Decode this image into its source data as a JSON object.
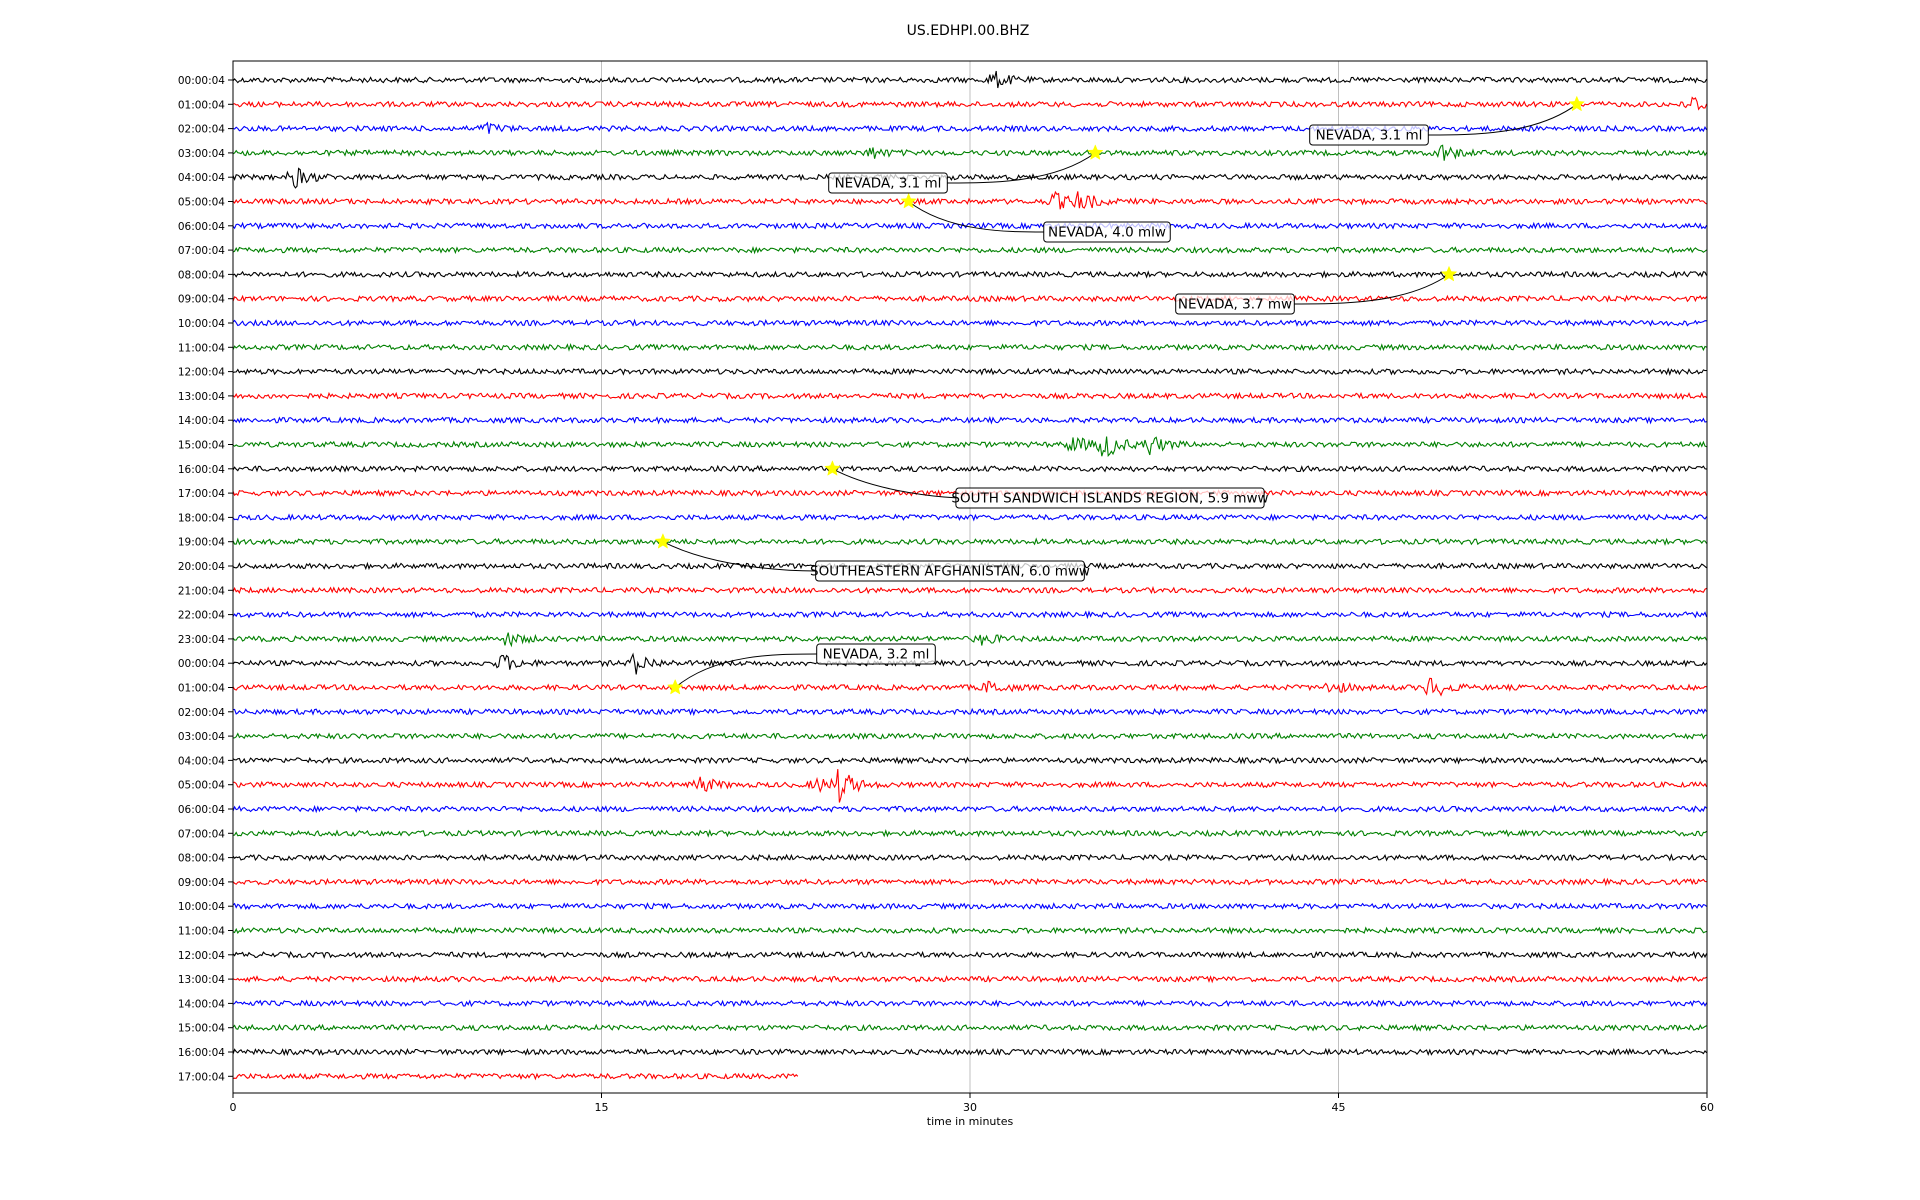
{
  "chart_data": {
    "type": "line",
    "title": "US.EDHPI.00.BHZ",
    "xlabel": "time in minutes",
    "ylabel": "",
    "xlim": [
      0,
      60
    ],
    "x_ticks": [
      "0",
      "15",
      "30",
      "45",
      "60"
    ],
    "x_tick_values": [
      0,
      15,
      30,
      45,
      60
    ],
    "grid": "vertical",
    "series_colors": [
      "#000000",
      "#ff0000",
      "#0000ff",
      "#008000"
    ],
    "marker_color": "#ffff00",
    "rows": [
      {
        "label": "00:00:04",
        "end_minute": 60,
        "bursts": [
          {
            "t": 31,
            "amp": 8
          }
        ]
      },
      {
        "label": "01:00:04",
        "end_minute": 60,
        "bursts": [
          {
            "t": 59.4,
            "amp": 8
          }
        ]
      },
      {
        "label": "02:00:04",
        "end_minute": 60,
        "bursts": [
          {
            "t": 10.3,
            "amp": 5
          }
        ]
      },
      {
        "label": "03:00:04",
        "end_minute": 60,
        "bursts": [
          {
            "t": 26,
            "amp": 5
          },
          {
            "t": 49.2,
            "amp": 8
          }
        ]
      },
      {
        "label": "04:00:04",
        "end_minute": 60,
        "bursts": [
          {
            "t": 2.5,
            "amp": 10
          }
        ]
      },
      {
        "label": "05:00:04",
        "end_minute": 60,
        "bursts": [
          {
            "t": 33.5,
            "amp": 8
          },
          {
            "t": 34.5,
            "amp": 9
          }
        ]
      },
      {
        "label": "06:00:04",
        "end_minute": 60,
        "bursts": []
      },
      {
        "label": "07:00:04",
        "end_minute": 60,
        "bursts": []
      },
      {
        "label": "08:00:04",
        "end_minute": 60,
        "bursts": []
      },
      {
        "label": "09:00:04",
        "end_minute": 60,
        "bursts": []
      },
      {
        "label": "10:00:04",
        "end_minute": 60,
        "bursts": []
      },
      {
        "label": "11:00:04",
        "end_minute": 60,
        "bursts": []
      },
      {
        "label": "12:00:04",
        "end_minute": 60,
        "bursts": []
      },
      {
        "label": "13:00:04",
        "end_minute": 60,
        "bursts": []
      },
      {
        "label": "14:00:04",
        "end_minute": 60,
        "bursts": []
      },
      {
        "label": "15:00:04",
        "end_minute": 60,
        "bursts": [
          {
            "t": 34.2,
            "amp": 8
          },
          {
            "t": 35.5,
            "amp": 14
          },
          {
            "t": 37.3,
            "amp": 10
          }
        ]
      },
      {
        "label": "16:00:04",
        "end_minute": 60,
        "bursts": []
      },
      {
        "label": "17:00:04",
        "end_minute": 60,
        "bursts": []
      },
      {
        "label": "18:00:04",
        "end_minute": 60,
        "bursts": []
      },
      {
        "label": "19:00:04",
        "end_minute": 60,
        "bursts": []
      },
      {
        "label": "20:00:04",
        "end_minute": 60,
        "bursts": []
      },
      {
        "label": "21:00:04",
        "end_minute": 60,
        "bursts": []
      },
      {
        "label": "22:00:04",
        "end_minute": 60,
        "bursts": []
      },
      {
        "label": "23:00:04",
        "end_minute": 60,
        "bursts": [
          {
            "t": 11.2,
            "amp": 6
          },
          {
            "t": 30.5,
            "amp": 5
          }
        ]
      },
      {
        "label": "00:00:04",
        "end_minute": 60,
        "bursts": [
          {
            "t": 11,
            "amp": 8
          },
          {
            "t": 16.4,
            "amp": 10
          }
        ]
      },
      {
        "label": "01:00:04",
        "end_minute": 60,
        "bursts": [
          {
            "t": 30.8,
            "amp": 6
          },
          {
            "t": 44.7,
            "amp": 6
          },
          {
            "t": 48.8,
            "amp": 11
          }
        ]
      },
      {
        "label": "02:00:04",
        "end_minute": 60,
        "bursts": []
      },
      {
        "label": "03:00:04",
        "end_minute": 60,
        "bursts": []
      },
      {
        "label": "04:00:04",
        "end_minute": 60,
        "bursts": []
      },
      {
        "label": "05:00:04",
        "end_minute": 60,
        "bursts": [
          {
            "t": 19,
            "amp": 8
          },
          {
            "t": 23.8,
            "amp": 6
          },
          {
            "t": 24.7,
            "amp": 16
          }
        ]
      },
      {
        "label": "06:00:04",
        "end_minute": 60,
        "bursts": []
      },
      {
        "label": "07:00:04",
        "end_minute": 60,
        "bursts": []
      },
      {
        "label": "08:00:04",
        "end_minute": 60,
        "bursts": []
      },
      {
        "label": "09:00:04",
        "end_minute": 60,
        "bursts": []
      },
      {
        "label": "10:00:04",
        "end_minute": 60,
        "bursts": []
      },
      {
        "label": "11:00:04",
        "end_minute": 60,
        "bursts": []
      },
      {
        "label": "12:00:04",
        "end_minute": 60,
        "bursts": []
      },
      {
        "label": "13:00:04",
        "end_minute": 60,
        "bursts": []
      },
      {
        "label": "14:00:04",
        "end_minute": 60,
        "bursts": []
      },
      {
        "label": "15:00:04",
        "end_minute": 60,
        "bursts": []
      },
      {
        "label": "16:00:04",
        "end_minute": 60,
        "bursts": []
      },
      {
        "label": "17:00:04",
        "end_minute": 23,
        "bursts": []
      }
    ],
    "events": [
      {
        "label": "NEVADA, 3.1 ml",
        "row": 1,
        "t": 54.7
      },
      {
        "label": "NEVADA, 3.1 ml",
        "row": 3,
        "t": 35.1
      },
      {
        "label": "NEVADA, 4.0 mlw",
        "row": 5,
        "t": 27.5
      },
      {
        "label": "NEVADA, 3.7 mw",
        "row": 8,
        "t": 49.5
      },
      {
        "label": "SOUTH SANDWICH ISLANDS REGION, 5.9 mww",
        "row": 16,
        "t": 24.4
      },
      {
        "label": "SOUTHEASTERN AFGHANISTAN, 6.0 mww",
        "row": 19,
        "t": 17.5
      },
      {
        "label": "NEVADA, 3.2 ml",
        "row": 25,
        "t": 18
      }
    ]
  }
}
